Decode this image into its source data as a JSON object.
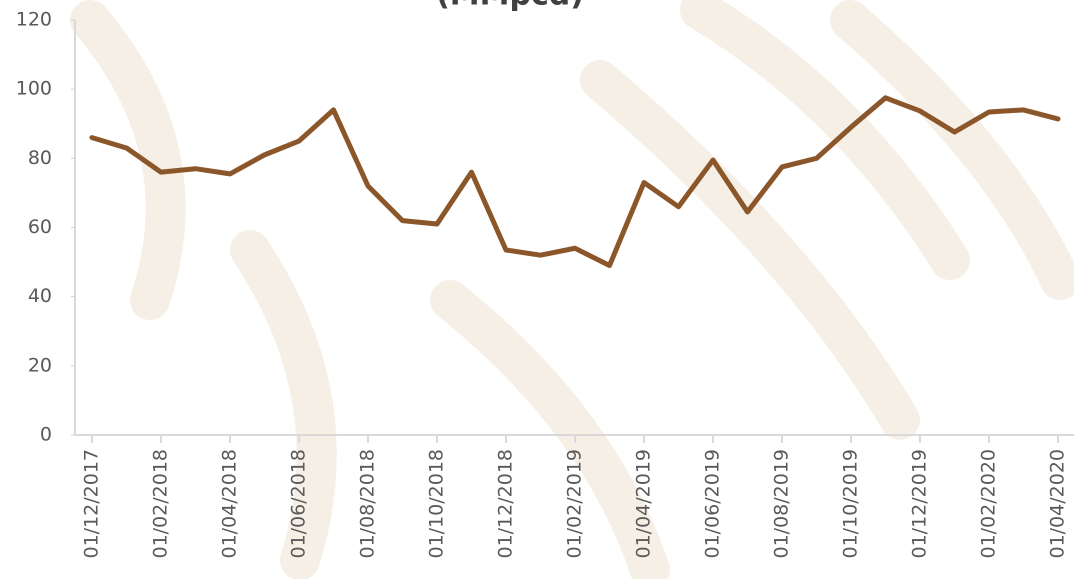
{
  "chart_data": {
    "type": "line",
    "title": "(MMpcd)",
    "categories": [
      "01/12/2017",
      null,
      "01/02/2018",
      null,
      "01/04/2018",
      null,
      "01/06/2018",
      null,
      "01/08/2018",
      null,
      "01/10/2018",
      null,
      "01/12/2018",
      null,
      "01/02/2019",
      null,
      "01/04/2019",
      null,
      "01/06/2019",
      null,
      "01/08/2019",
      null,
      "01/10/2019",
      null,
      "01/12/2019",
      null,
      "01/02/2020",
      null,
      "01/04/2020"
    ],
    "series": [
      {
        "color": "#8b572a",
        "values": [
          86,
          83,
          76,
          77,
          75.5,
          81,
          85,
          94,
          72,
          62,
          61,
          76,
          53.5,
          52,
          54,
          49,
          73,
          66,
          79.5,
          64.5,
          77.5,
          80,
          89,
          97.5,
          93.7,
          87.6,
          93.4,
          94,
          91.4
        ]
      }
    ],
    "ylim": [
      0,
      120
    ],
    "yticks": [
      0,
      20,
      40,
      60,
      80,
      100,
      120
    ]
  }
}
